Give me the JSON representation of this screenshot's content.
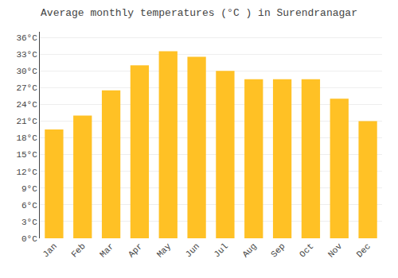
{
  "chart_data": {
    "type": "bar",
    "title": "Average monthly temperatures (°C ) in Surendranagar",
    "categories": [
      "Jan",
      "Feb",
      "Mar",
      "Apr",
      "May",
      "Jun",
      "Jul",
      "Aug",
      "Sep",
      "Oct",
      "Nov",
      "Dec"
    ],
    "values": [
      19.5,
      22.0,
      26.5,
      31.0,
      33.5,
      32.5,
      30.0,
      28.5,
      28.5,
      28.5,
      25.0,
      21.0
    ],
    "color": "#FFC125",
    "ylim": [
      0,
      37
    ],
    "yticks": [
      {
        "value": 0,
        "label": "0°C"
      },
      {
        "value": 3,
        "label": "3°C"
      },
      {
        "value": 6,
        "label": "6°C"
      },
      {
        "value": 9,
        "label": "9°C"
      },
      {
        "value": 12,
        "label": "12°C"
      },
      {
        "value": 15,
        "label": "15°C"
      },
      {
        "value": 18,
        "label": "18°C"
      },
      {
        "value": 21,
        "label": "21°C"
      },
      {
        "value": 24,
        "label": "24°C"
      },
      {
        "value": 27,
        "label": "27°C"
      },
      {
        "value": 30,
        "label": "30°C"
      },
      {
        "value": 33,
        "label": "33°C"
      },
      {
        "value": 36,
        "label": "36°C"
      }
    ],
    "grid": true
  }
}
